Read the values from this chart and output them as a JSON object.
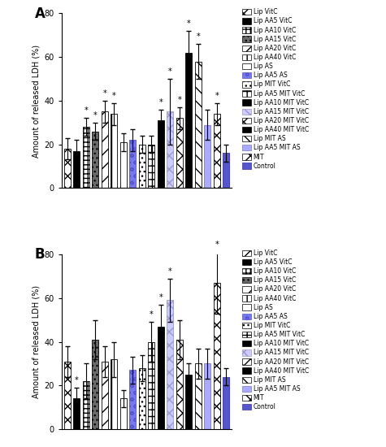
{
  "panel_A": {
    "values": [
      18,
      17,
      28,
      26,
      35,
      34,
      21,
      22,
      20,
      20,
      31,
      35,
      32,
      62,
      58,
      29,
      34,
      16
    ],
    "errors": [
      5,
      5,
      4,
      4,
      5,
      5,
      4,
      5,
      4,
      4,
      5,
      15,
      5,
      10,
      8,
      7,
      5,
      4
    ],
    "sig": [
      false,
      false,
      true,
      true,
      true,
      true,
      false,
      false,
      false,
      false,
      true,
      true,
      true,
      true,
      true,
      false,
      true,
      false
    ],
    "ylim": [
      0,
      80
    ],
    "ylabel": "Amount of released LDH (%)"
  },
  "panel_B": {
    "values": [
      31,
      14,
      22,
      41,
      31,
      32,
      14,
      27,
      28,
      40,
      47,
      59,
      41,
      25,
      30,
      30,
      67,
      24
    ],
    "errors": [
      7,
      5,
      8,
      9,
      7,
      8,
      4,
      6,
      6,
      9,
      10,
      10,
      9,
      5,
      7,
      7,
      14,
      4
    ],
    "sig": [
      false,
      true,
      false,
      false,
      false,
      false,
      false,
      false,
      false,
      true,
      true,
      true,
      false,
      false,
      false,
      false,
      true,
      false
    ],
    "ylim": [
      0,
      80
    ],
    "ylabel": "Amount of released LDH (%)"
  },
  "legend_labels_A": [
    "Lip VitC",
    "Lip AA5 VitC",
    "Lip AA10 VitC",
    "Lip AA15 VitC",
    "Lip AA20 VitC",
    "Lip AA40 VitC",
    "Lip AS",
    "Lip AA5 AS",
    "Lip MIT VitC",
    "Lip AA5 MIT VitC",
    "Lip AA10 MIT VitC",
    "Lip AA15 MIT VitC",
    "Lip AA20 MIT VitC",
    "Lip AA40 MIT VitC",
    "Lip MIT AS",
    "Lip AA5 MIT AS",
    "MIT",
    "Control"
  ],
  "legend_labels_B": [
    "Lip VitC",
    "Lip AA5 VitC",
    "Lip AA10 VitC",
    "Lip AA15 VitC",
    "Lip AA20 VitC",
    "Lip AA40 VitC",
    "Lip AS",
    "Lip AA5 AS",
    "Lip MIT VitC",
    "Lip AA5 MIT VitC",
    "Lip AA10 MIT VitC",
    "Lip AA15 MIT VitC",
    "Lip AA20 MIT VitC",
    "Lip AA40 MIT VitC",
    "Lip MIT AS",
    "Lip AA5 MIT AS",
    "MIT",
    "Control"
  ],
  "figsize": [
    4.75,
    5.5
  ],
  "dpi": 100
}
